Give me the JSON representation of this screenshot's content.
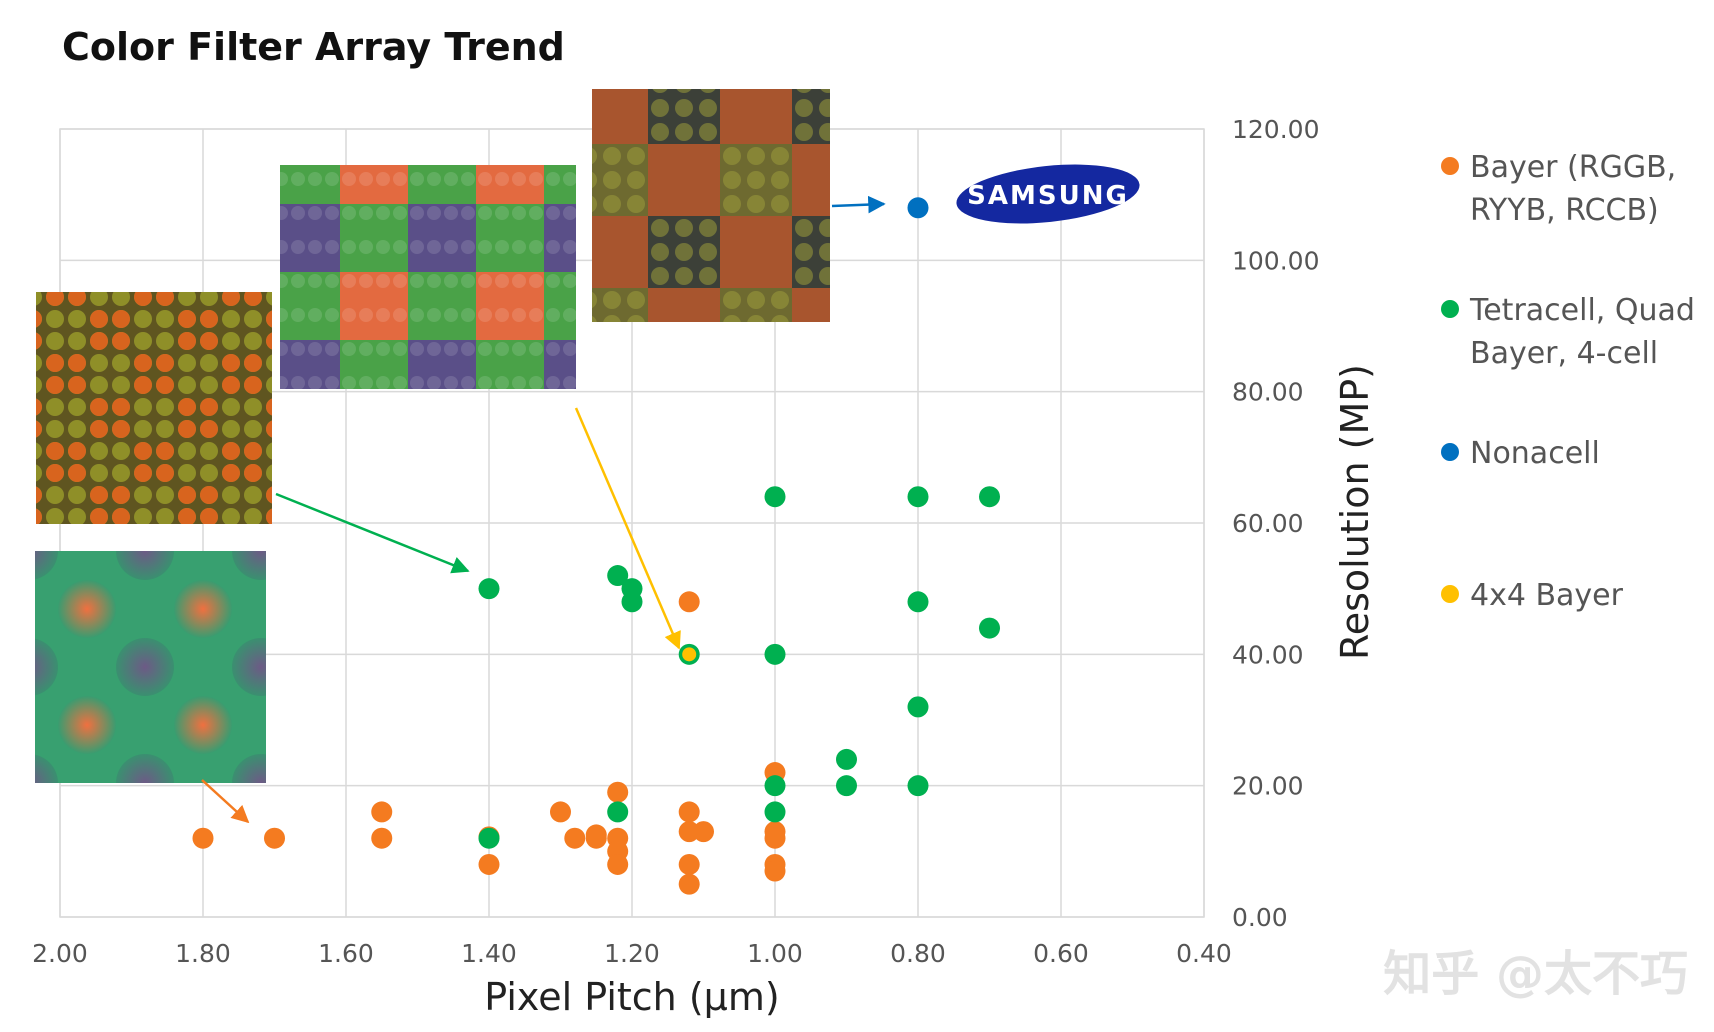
{
  "chart_data": {
    "type": "scatter",
    "title": "Color Filter Array Trend",
    "xlabel": "Pixel Pitch (µm)",
    "ylabel": "Resolution (MP)",
    "xlim": [
      2.0,
      0.4
    ],
    "x_reversed": true,
    "ylim": [
      0,
      120
    ],
    "x_ticks": [
      "2.00",
      "1.80",
      "1.60",
      "1.40",
      "1.20",
      "1.00",
      "0.80",
      "0.60",
      "0.40"
    ],
    "y_ticks": [
      "0.00",
      "20.00",
      "40.00",
      "60.00",
      "80.00",
      "100.00",
      "120.00"
    ],
    "grid": true,
    "y_axis_side": "right",
    "legend_position": "right",
    "series": [
      {
        "name": "Bayer (RGGB, RYYB, RCCB)",
        "legend_lines": [
          "Bayer (RGGB,",
          "RYYB, RCCB)"
        ],
        "color": "#f47b20",
        "points": [
          [
            1.8,
            12
          ],
          [
            1.7,
            12
          ],
          [
            1.55,
            16
          ],
          [
            1.55,
            12
          ],
          [
            1.4,
            12.2
          ],
          [
            1.4,
            8
          ],
          [
            1.3,
            16
          ],
          [
            1.28,
            12
          ],
          [
            1.25,
            12.5
          ],
          [
            1.25,
            12
          ],
          [
            1.22,
            19
          ],
          [
            1.22,
            12
          ],
          [
            1.22,
            10
          ],
          [
            1.22,
            8
          ],
          [
            1.12,
            48
          ],
          [
            1.12,
            16
          ],
          [
            1.12,
            13
          ],
          [
            1.12,
            8
          ],
          [
            1.12,
            5
          ],
          [
            1.1,
            13
          ],
          [
            1.0,
            22
          ],
          [
            1.0,
            13
          ],
          [
            1.0,
            12
          ],
          [
            1.0,
            8
          ],
          [
            1.0,
            7
          ]
        ]
      },
      {
        "name": "Tetracell, Quad Bayer, 4-cell",
        "legend_lines": [
          "Tetracell, Quad",
          "Bayer, 4-cell"
        ],
        "color": "#00b050",
        "points": [
          [
            1.4,
            50
          ],
          [
            1.4,
            12
          ],
          [
            1.22,
            52
          ],
          [
            1.2,
            50
          ],
          [
            1.2,
            48
          ],
          [
            1.22,
            16
          ],
          [
            1.12,
            40
          ],
          [
            1.0,
            64
          ],
          [
            1.0,
            40
          ],
          [
            1.0,
            20
          ],
          [
            1.0,
            16
          ],
          [
            0.9,
            24
          ],
          [
            0.9,
            20
          ],
          [
            0.8,
            64
          ],
          [
            0.8,
            48
          ],
          [
            0.8,
            32
          ],
          [
            0.8,
            20
          ],
          [
            0.7,
            64
          ],
          [
            0.7,
            44
          ]
        ]
      },
      {
        "name": "Nonacell",
        "legend_lines": [
          "Nonacell"
        ],
        "color": "#0070c0",
        "points": [
          [
            0.8,
            108
          ]
        ]
      },
      {
        "name": "4x4 Bayer",
        "legend_lines": [
          "4x4 Bayer"
        ],
        "color": "#ffc000",
        "points": [
          [
            1.12,
            40
          ]
        ]
      }
    ],
    "annotations": {
      "brand_logo_text": "SAMSUNG",
      "watermark": "知乎 @太不巧"
    }
  }
}
